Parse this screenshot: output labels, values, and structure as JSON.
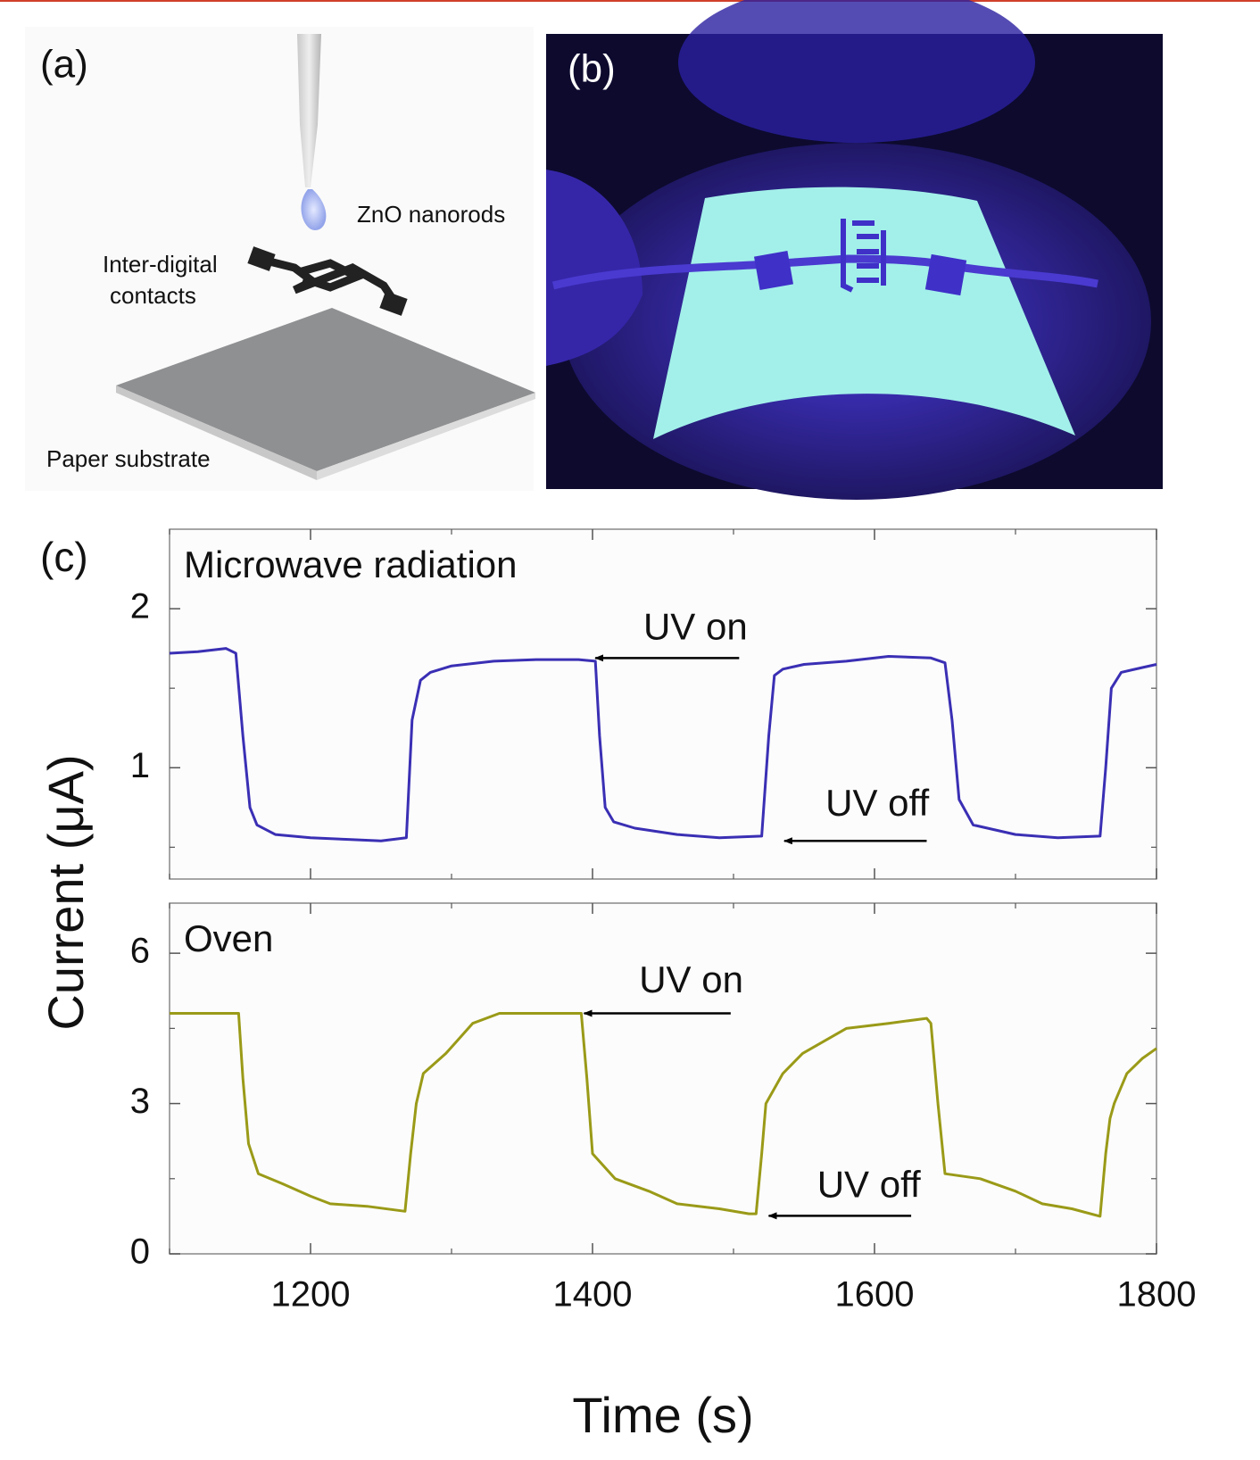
{
  "figure": {
    "panel_labels": [
      "(a)",
      "(b)",
      "(c)"
    ],
    "diagram_labels": {
      "droplet": "ZnO nanorods",
      "contacts": [
        "Inter-digital",
        "contacts"
      ],
      "substrate": "Paper substrate"
    }
  },
  "chart_data": [
    {
      "type": "line",
      "y_label": "Current (μA)",
      "x": [
        1100,
        1120,
        1140,
        1147,
        1152,
        1157,
        1162,
        1175,
        1200,
        1225,
        1250,
        1268,
        1272,
        1278,
        1285,
        1300,
        1330,
        1360,
        1390,
        1402,
        1405,
        1409,
        1415,
        1430,
        1460,
        1490,
        1520,
        1525,
        1529,
        1535,
        1550,
        1580,
        1610,
        1640,
        1650,
        1655,
        1660,
        1670,
        1700,
        1730,
        1760,
        1764,
        1768,
        1775,
        1790,
        1800
      ],
      "series": [
        {
          "name": "Microwave radiation",
          "color": "#3a2fb4",
          "values": [
            1.72,
            1.73,
            1.75,
            1.72,
            1.2,
            0.75,
            0.64,
            0.58,
            0.56,
            0.55,
            0.54,
            0.56,
            1.3,
            1.55,
            1.6,
            1.64,
            1.67,
            1.68,
            1.68,
            1.67,
            1.2,
            0.75,
            0.66,
            0.62,
            0.58,
            0.56,
            0.57,
            1.2,
            1.58,
            1.62,
            1.65,
            1.67,
            1.7,
            1.69,
            1.66,
            1.3,
            0.8,
            0.64,
            0.58,
            0.56,
            0.57,
            1.0,
            1.5,
            1.6,
            1.63,
            1.65
          ]
        }
      ],
      "annotations": [
        {
          "text": "UV on"
        },
        {
          "text": "UV off"
        }
      ],
      "xlim": [
        1100,
        1800
      ],
      "xticks": [
        1200,
        1400,
        1600,
        1800
      ],
      "xticks_minor": [
        1100,
        1300,
        1500,
        1700
      ],
      "xtick_labels": false,
      "ylim": [
        0.3,
        2.5
      ],
      "yticks": [
        1,
        2
      ],
      "yticks_minor": [
        0.5,
        1.5
      ]
    },
    {
      "type": "line",
      "x_label": "Time (s)",
      "x": [
        1100,
        1149,
        1152,
        1156,
        1163,
        1180,
        1200,
        1214,
        1240,
        1267,
        1271,
        1275,
        1280,
        1296,
        1315,
        1334,
        1360,
        1392,
        1396,
        1400,
        1416,
        1440,
        1460,
        1490,
        1511,
        1516,
        1520,
        1523,
        1535,
        1549,
        1580,
        1610,
        1637,
        1640,
        1645,
        1650,
        1675,
        1700,
        1719,
        1740,
        1760,
        1764,
        1767,
        1770,
        1779,
        1790,
        1800
      ],
      "series": [
        {
          "name": "Oven",
          "color": "#9a9a18",
          "values": [
            4.8,
            4.8,
            3.5,
            2.2,
            1.6,
            1.4,
            1.15,
            1.0,
            0.95,
            0.85,
            2.0,
            3.0,
            3.6,
            4.0,
            4.6,
            4.8,
            4.8,
            4.8,
            3.5,
            2.0,
            1.5,
            1.25,
            1.0,
            0.9,
            0.8,
            0.8,
            2.0,
            3.0,
            3.6,
            4.0,
            4.5,
            4.6,
            4.7,
            4.6,
            3.0,
            1.6,
            1.5,
            1.25,
            1.0,
            0.9,
            0.75,
            2.0,
            2.7,
            3.0,
            3.6,
            3.9,
            4.1
          ]
        }
      ],
      "annotations": [
        {
          "text": "UV on"
        },
        {
          "text": "UV off"
        }
      ],
      "xlim": [
        1100,
        1800
      ],
      "xticks": [
        1200,
        1400,
        1600,
        1800
      ],
      "xticks_minor": [
        1100,
        1300,
        1500,
        1700
      ],
      "xtick_labels": true,
      "ylim": [
        0,
        7
      ],
      "yticks": [
        0,
        3,
        6
      ],
      "yticks_minor": [
        1.5,
        4.5
      ]
    }
  ]
}
